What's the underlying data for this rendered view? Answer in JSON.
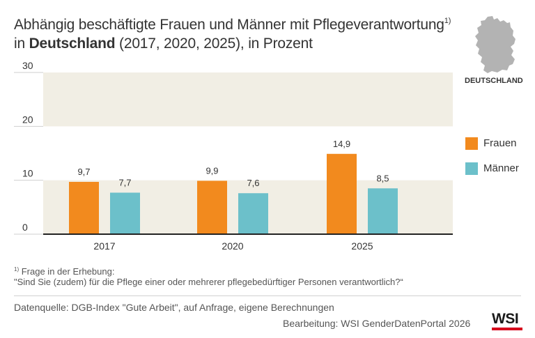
{
  "header": {
    "title_line1": "Abhängig beschäftigte Frauen und Männer mit Pflegeverantwortung",
    "title_sup": "1)",
    "title_line2_pre": "in ",
    "title_line2_bold": "Deutschland",
    "title_line2_post": " (2017, 2020, 2025), in Prozent"
  },
  "map": {
    "label": "DEUTSCHLAND",
    "icon": "germany-map-icon",
    "color": "#b3b3b3"
  },
  "chart_data": {
    "type": "bar",
    "categories": [
      "2017",
      "2020",
      "2025"
    ],
    "series": [
      {
        "name": "Frauen",
        "values": [
          9.7,
          9.9,
          14.9
        ],
        "labels": [
          "9,7",
          "9,9",
          "14,9"
        ],
        "color": "#f28a1e"
      },
      {
        "name": "Männer",
        "values": [
          7.7,
          7.6,
          8.5
        ],
        "labels": [
          "7,7",
          "7,6",
          "8,5"
        ],
        "color": "#6cc0ca"
      }
    ],
    "yticks": [
      "0",
      "10",
      "20",
      "30"
    ],
    "ylim": [
      0,
      30
    ],
    "band_color": "#f1eee4",
    "xlabel": "",
    "ylabel": "",
    "legend_position": "right"
  },
  "footnote": {
    "marker": "1)",
    "line1": " Frage in der Erhebung:",
    "line2": "\"Sind Sie (zudem) für die Pflege einer oder mehrerer pflegebedürftiger Personen verantwortlich?“"
  },
  "source": "Datenquelle: DGB-Index \"Gute Arbeit\", auf Anfrage, eigene Berechnungen",
  "credit": "Bearbeitung: WSI GenderDatenPortal 2026",
  "logo": {
    "text": "WSI",
    "accent": "#d6001c"
  }
}
